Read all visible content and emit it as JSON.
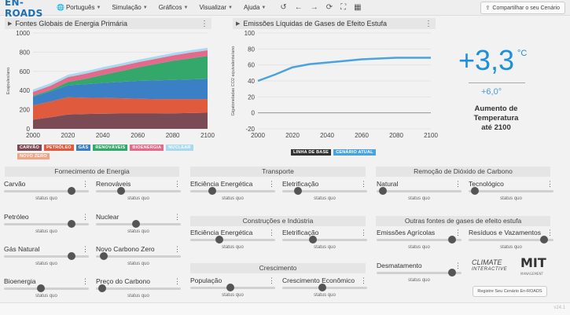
{
  "app": {
    "logo": "EN-ROADS"
  },
  "menu": {
    "language": "Português",
    "simulation": "Simulação",
    "graphs": "Gráficos",
    "view": "Visualizar",
    "help": "Ajuda"
  },
  "share": {
    "label": "Compartilhar o seu Cenário"
  },
  "left_panel": {
    "title": "Fontes Globais de Energia Primária"
  },
  "right_panel": {
    "title": "Emissões Líquidas de Gases de Efeito Estufa"
  },
  "energy_legend": [
    {
      "label": "CARVÃO",
      "color": "#7a4a55"
    },
    {
      "label": "PETRÓLEO",
      "color": "#e05a3e"
    },
    {
      "label": "GÁS",
      "color": "#3b7fc4"
    },
    {
      "label": "RENOVÁVEIS",
      "color": "#33a86a"
    },
    {
      "label": "BIOENERGIA",
      "color": "#e46a8c"
    },
    {
      "label": "NUCLEAR",
      "color": "#a9d9ef"
    },
    {
      "label": "NOVO ZERO",
      "color": "#f1a486"
    }
  ],
  "emissions_legend": [
    {
      "label": "LINHA DE BASE",
      "color": "#333333"
    },
    {
      "label": "CENÁRIO ATUAL",
      "color": "#4aa3dc"
    }
  ],
  "temperature": {
    "current": "+3,3",
    "unit": "°C",
    "baseline": "+6,0",
    "baseline_unit": "°",
    "label_line1": "Aumento de",
    "label_line2": "Temperatura",
    "label_line3": "até 2100"
  },
  "sections": {
    "energy": "Fornecimento de Energia",
    "transport": "Transporte",
    "buildings": "Construções e Indústria",
    "growth": "Crescimento",
    "cdr": "Remoção de Dióxido de Carbono",
    "other_ghg": "Outras fontes de gases de efeito estufa"
  },
  "status_quo": "status quo",
  "sliders": {
    "coal": {
      "label": "Carvão",
      "value": 0.83
    },
    "renewables": {
      "label": "Renováveis",
      "value": 0.28
    },
    "oil": {
      "label": "Petróleo",
      "value": 0.83
    },
    "nuclear": {
      "label": "Nuclear",
      "value": 0.47
    },
    "natural_gas": {
      "label": "Gás Natural",
      "value": 0.83
    },
    "new_zero": {
      "label": "Novo Carbono Zero",
      "value": 0.05
    },
    "bioenergy": {
      "label": "Bioenergia",
      "value": 0.43
    },
    "carbon_price": {
      "label": "Preço do Carbono",
      "value": 0.03
    },
    "transport_eff": {
      "label": "Eficiência Energética",
      "value": 0.23
    },
    "transport_elec": {
      "label": "Eletrificação",
      "value": 0.15
    },
    "build_eff": {
      "label": "Eficiência Energética",
      "value": 0.33
    },
    "build_elec": {
      "label": "Eletrificação",
      "value": 0.35
    },
    "population": {
      "label": "População",
      "value": 0.47
    },
    "economic_growth": {
      "label": "Crescimento Econômico",
      "value": 0.47
    },
    "natural_cdr": {
      "label": "Natural",
      "value": 0.03
    },
    "tech_cdr": {
      "label": "Tecnológico",
      "value": 0.03
    },
    "agri_emissions": {
      "label": "Emissões Agrícolas",
      "value": 0.93
    },
    "waste_leak": {
      "label": "Resíduos e Vazamentos",
      "value": 0.93
    },
    "deforestation": {
      "label": "Desmatamento",
      "value": 0.93
    }
  },
  "logos": {
    "climate_interactive_1": "CLIMATE",
    "climate_interactive_2": "INTERACTIVE",
    "mit": "MIT",
    "mit_sub": "MANAGEMENT"
  },
  "register_button": "Registre Seu Cenário En-ROADS",
  "version": "v24.1",
  "chart_data": [
    {
      "type": "area",
      "title": "Fontes Globais de Energia Primária",
      "ylabel": "Exajoules/ano",
      "xlabel": "",
      "xlim": [
        2000,
        2100
      ],
      "ylim": [
        0,
        1000
      ],
      "xticks": [
        2000,
        2020,
        2040,
        2060,
        2080,
        2100
      ],
      "yticks": [
        0,
        200,
        400,
        600,
        800,
        1000
      ],
      "x": [
        2000,
        2010,
        2020,
        2030,
        2040,
        2050,
        2060,
        2070,
        2080,
        2090,
        2100
      ],
      "series": [
        {
          "name": "CARVÃO",
          "color": "#7a4a55",
          "values": [
            95,
            120,
            150,
            155,
            158,
            160,
            160,
            160,
            162,
            165,
            168
          ]
        },
        {
          "name": "PETRÓLEO",
          "color": "#e05a3e",
          "values": [
            150,
            165,
            180,
            170,
            165,
            160,
            155,
            150,
            148,
            145,
            142
          ]
        },
        {
          "name": "GÁS",
          "color": "#3b7fc4",
          "values": [
            90,
            105,
            125,
            140,
            155,
            170,
            185,
            195,
            200,
            205,
            210
          ]
        },
        {
          "name": "RENOVÁVEIS",
          "color": "#33a86a",
          "values": [
            10,
            15,
            35,
            55,
            85,
            110,
            140,
            170,
            200,
            220,
            240
          ]
        },
        {
          "name": "BIOENERGIA",
          "color": "#e46a8c",
          "values": [
            40,
            45,
            50,
            55,
            55,
            55,
            55,
            55,
            55,
            60,
            60
          ]
        },
        {
          "name": "NUCLEAR",
          "color": "#a9d9ef",
          "values": [
            25,
            25,
            25,
            25,
            25,
            25,
            25,
            25,
            25,
            25,
            25
          ]
        },
        {
          "name": "NOVO ZERO",
          "color": "#f1a486",
          "values": [
            0,
            0,
            0,
            0,
            0,
            0,
            0,
            0,
            0,
            0,
            0
          ]
        }
      ]
    },
    {
      "type": "line",
      "title": "Emissões Líquidas de Gases de Efeito Estufa",
      "ylabel": "Gigatoneladas CO2 equivalente/ano",
      "xlabel": "",
      "xlim": [
        2000,
        2100
      ],
      "ylim": [
        -20,
        100
      ],
      "xticks": [
        2000,
        2020,
        2040,
        2060,
        2080,
        2100
      ],
      "yticks": [
        -20,
        0,
        20,
        40,
        60,
        80,
        100
      ],
      "x": [
        2000,
        2010,
        2020,
        2030,
        2040,
        2050,
        2060,
        2070,
        2080,
        2090,
        2100
      ],
      "series": [
        {
          "name": "CENÁRIO ATUAL",
          "color": "#4aa3dc",
          "values": [
            40,
            48,
            57,
            61,
            63,
            65,
            67,
            68,
            69,
            69,
            69
          ]
        }
      ]
    }
  ]
}
